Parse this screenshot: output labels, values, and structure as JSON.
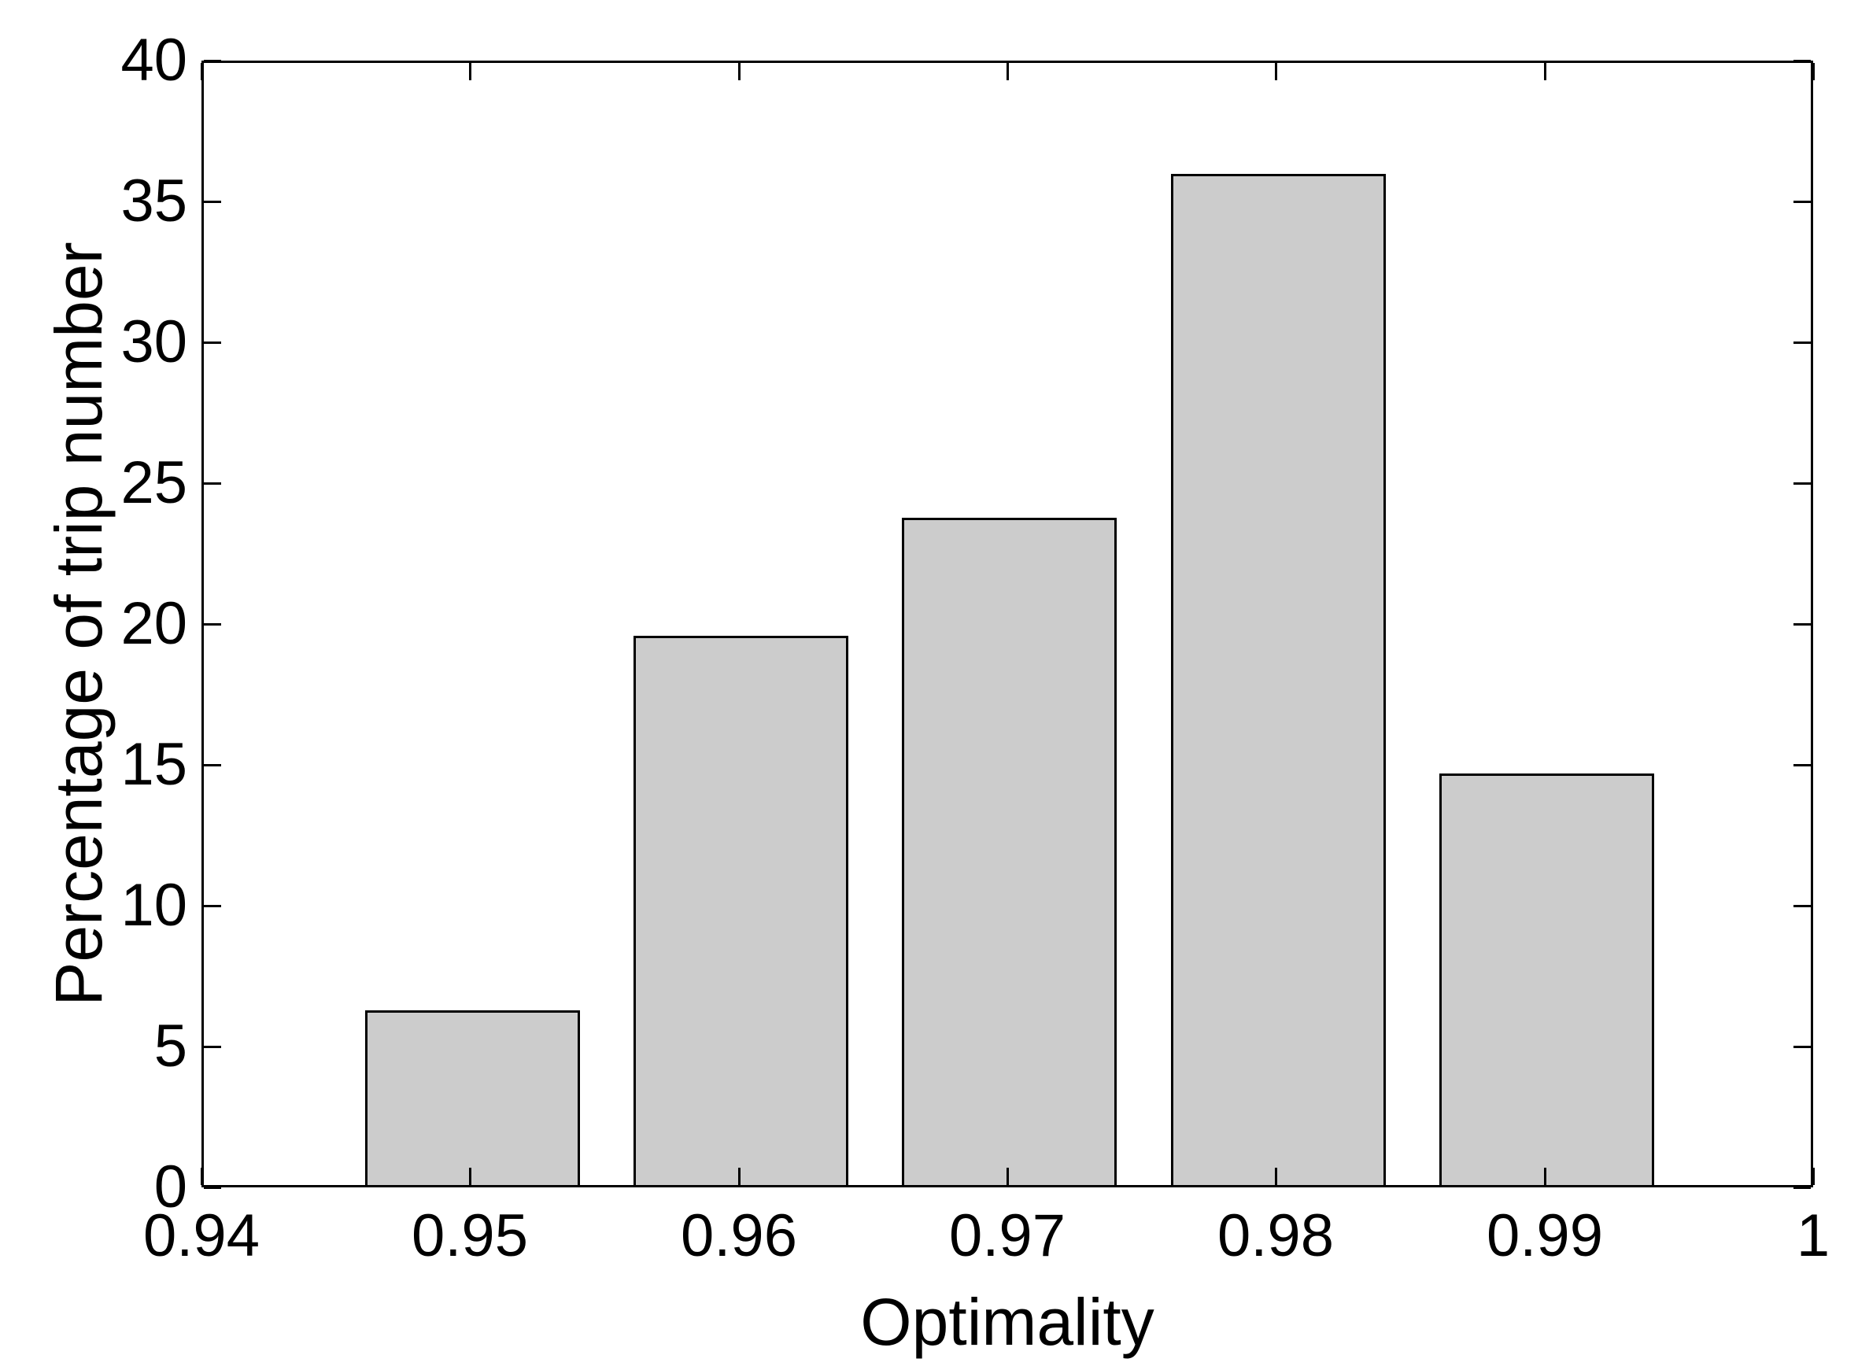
{
  "figure": {
    "background": "#ffffff",
    "axis_color": "#000000",
    "text_color": "#000000"
  },
  "chart_data": {
    "type": "bar",
    "title": "",
    "xlabel": "Optimality",
    "ylabel": "Percentage of trip number",
    "categories": [
      0.95,
      0.96,
      0.97,
      0.98,
      0.99
    ],
    "values": [
      6.2,
      19.5,
      23.7,
      35.9,
      14.6
    ],
    "bar_width_data_units": 0.008,
    "xlim": [
      0.94,
      1.0
    ],
    "ylim": [
      0,
      40
    ],
    "xticks": [
      0.94,
      0.95,
      0.96,
      0.97,
      0.98,
      0.99,
      1
    ],
    "xtick_labels": [
      "0.94",
      "0.95",
      "0.96",
      "0.97",
      "0.98",
      "0.99",
      "1"
    ],
    "yticks": [
      0,
      5,
      10,
      15,
      20,
      25,
      30,
      35,
      40
    ],
    "ytick_labels": [
      "0",
      "5",
      "10",
      "15",
      "20",
      "25",
      "30",
      "35",
      "40"
    ],
    "grid": false,
    "legend": null,
    "box": true,
    "tick_direction": "in",
    "bar_fill": "#cccccc",
    "bar_edge": "#000000"
  }
}
